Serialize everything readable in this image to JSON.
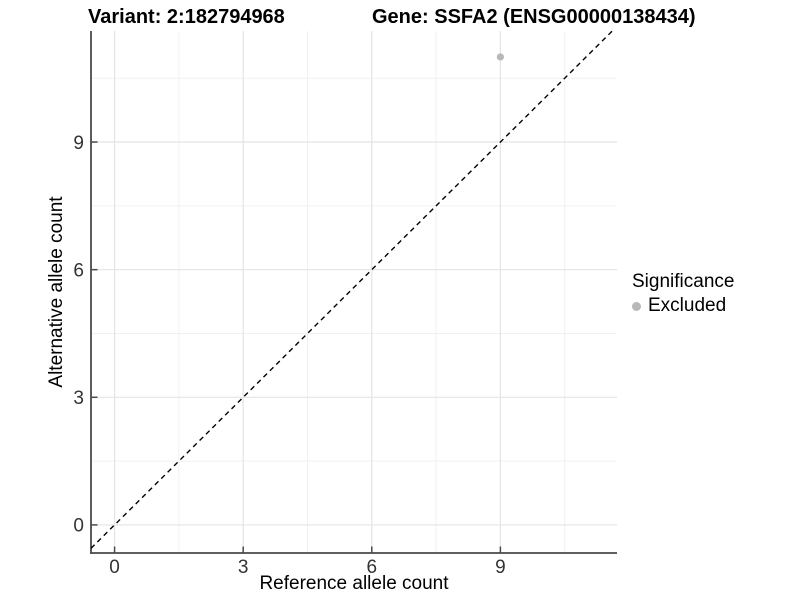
{
  "chart_data": {
    "type": "scatter",
    "titles": [
      "Variant: 2:182794968",
      "Gene: SSFA2 (ENSG00000138434)"
    ],
    "xlabel": "Reference allele count",
    "ylabel": "Alternative allele count",
    "x_ticks": [
      0,
      3,
      6,
      9
    ],
    "y_ticks": [
      0,
      3,
      6,
      9
    ],
    "x_minor_ticks": [
      1.5,
      4.5,
      7.5,
      10.5
    ],
    "y_minor_ticks": [
      1.5,
      4.5,
      7.5,
      10.5
    ],
    "xlim": [
      -0.55,
      11.72
    ],
    "ylim": [
      -0.66,
      11.61
    ],
    "grid": "major+minor",
    "legend_position": "right",
    "legend_title": "Significance",
    "series": [
      {
        "name": "Excluded",
        "color": "#b8b8b8",
        "points": [
          {
            "x": 9,
            "y": 11
          }
        ]
      }
    ],
    "reference_line": {
      "type": "y=x",
      "style": "dashed",
      "color": "#000000"
    }
  },
  "colors": {
    "background": "#ffffff",
    "grid_major": "#e4e4e4",
    "grid_minor": "#f1f1f1",
    "axis_line": "#4a4a4a",
    "tick_text": "#333333",
    "title_text": "#000000"
  }
}
